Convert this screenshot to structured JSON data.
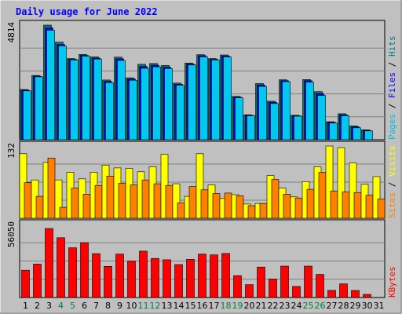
{
  "chart_data": {
    "type": "bar",
    "title": "Daily usage for June 2022",
    "categories": [
      "1",
      "2",
      "3",
      "4",
      "5",
      "6",
      "7",
      "8",
      "9",
      "10",
      "11",
      "12",
      "13",
      "14",
      "15",
      "16",
      "17",
      "18",
      "19",
      "20",
      "21",
      "22",
      "23",
      "24",
      "25",
      "26",
      "27",
      "28",
      "29",
      "30",
      "31"
    ],
    "weekend_days": [
      "4",
      "5",
      "11",
      "12",
      "18",
      "19",
      "25",
      "26"
    ],
    "panels": [
      {
        "id": "hits",
        "y_max_label": "4814",
        "ylim": [
          0,
          4814
        ],
        "side_labels": [
          {
            "text": "Pages",
            "color": "#00c0e0"
          },
          {
            "text": "Files",
            "color": "#0000ff"
          },
          {
            "text": "Hits",
            "color": "#008080"
          }
        ],
        "series": [
          {
            "name": "Hits",
            "color": "#00805f",
            "values": [
              2110,
              2700,
              4814,
              4100,
              3410,
              3580,
              3480,
              2510,
              3470,
              2600,
              3170,
              3200,
              3120,
              2380,
              3220,
              3570,
              3410,
              3560,
              1820,
              1050,
              2360,
              1620,
              2520,
              1030,
              2530,
              2020,
              760,
              1090,
              580,
              420,
              0
            ]
          },
          {
            "name": "Files",
            "color": "#0000ff",
            "values": [
              2080,
              2670,
              4700,
              4000,
              3380,
              3540,
              3430,
              2450,
              3400,
              2550,
              3080,
              3130,
              3050,
              2330,
              3180,
              3530,
              3380,
              3520,
              1790,
              1030,
              2300,
              1570,
              2480,
              1010,
              2480,
              1940,
              730,
              1050,
              540,
              390,
              0
            ]
          },
          {
            "name": "Pages",
            "color": "#00c8f0",
            "values": [
              2050,
              2640,
              4600,
              3940,
              3350,
              3510,
              3390,
              2400,
              3330,
              2500,
              3000,
              3060,
              2990,
              2290,
              3140,
              3480,
              3350,
              3480,
              1760,
              1010,
              2240,
              1520,
              2440,
              990,
              2420,
              1860,
              700,
              1010,
              500,
              370,
              0
            ]
          }
        ]
      },
      {
        "id": "visits",
        "y_max_label": "132",
        "ylim": [
          0,
          132
        ],
        "side_labels": [
          {
            "text": "Sites",
            "color": "#ff8000"
          },
          {
            "text": "Visits",
            "color": "#ffff00"
          }
        ],
        "series": [
          {
            "name": "Visits",
            "color": "#ffff00",
            "values": [
              118,
              70,
              102,
              70,
              84,
              72,
              84,
              97,
              92,
              91,
              85,
              94,
              117,
              63,
              40,
              118,
              61,
              36,
              43,
              26,
              27,
              78,
              55,
              39,
              67,
              94,
              132,
              129,
              101,
              62,
              76
            ]
          },
          {
            "name": "Sites",
            "color": "#ff8000",
            "values": [
              65,
              40,
              110,
              20,
              55,
              44,
              60,
              77,
              64,
              61,
              70,
              63,
              60,
              28,
              58,
              52,
              45,
              46,
              41,
              23,
              27,
              71,
              44,
              37,
              53,
              84,
              50,
              48,
              47,
              42,
              35
            ]
          }
        ]
      },
      {
        "id": "kbytes",
        "y_max_label": "56050",
        "ylim": [
          0,
          56050
        ],
        "side_labels": [
          {
            "text": "KBytes",
            "color": "#ff0000"
          }
        ],
        "series": [
          {
            "name": "KBytes",
            "color": "#ff0000",
            "values": [
              21000,
              25700,
              53000,
              45900,
              38200,
              42100,
              33700,
              23900,
              33400,
              28000,
              35600,
              30000,
              29000,
              25300,
              29300,
              33300,
              32700,
              33800,
              16800,
              9900,
              23400,
              14200,
              24100,
              8500,
              24100,
              17700,
              5500,
              10500,
              5400,
              2400,
              0
            ]
          }
        ]
      }
    ]
  }
}
